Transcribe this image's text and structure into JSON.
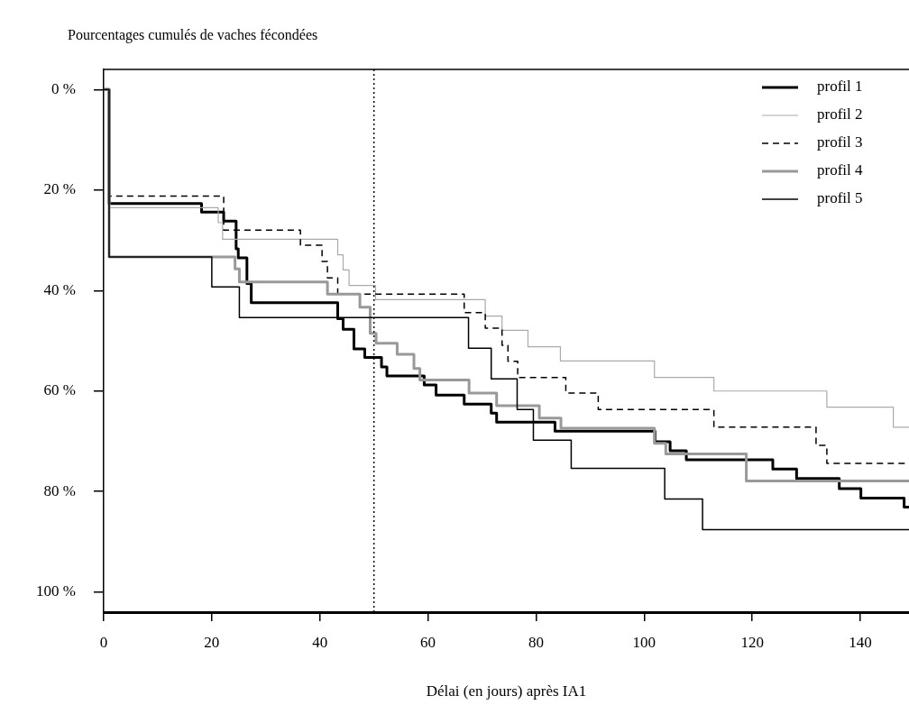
{
  "chart_data": {
    "type": "step",
    "ylabel": "Pourcentages cumulés de vaches fécondées",
    "xlabel": "Délai (en jours) après IA1",
    "xlim": [
      0,
      149
    ],
    "xticks": [
      0,
      20,
      40,
      60,
      80,
      100,
      120,
      140
    ],
    "ylim": [
      104,
      -4
    ],
    "yticks": [
      {
        "value": 0,
        "label": "0 %"
      },
      {
        "value": 20,
        "label": "20 %"
      },
      {
        "value": 40,
        "label": "40 %"
      },
      {
        "value": 60,
        "label": "60 %"
      },
      {
        "value": 80,
        "label": "80 %"
      },
      {
        "value": 100,
        "label": "100 %"
      }
    ],
    "grid": false,
    "legend": "top right",
    "ref_lines": [
      {
        "axis": "x",
        "value": 50,
        "color": "#000000",
        "line_style": "dotted"
      }
    ],
    "series": [
      {
        "name": "profil 1",
        "color": "#000000",
        "x": [
          0,
          1,
          18.1,
          22.2,
          24.5,
          24.9,
          26.5,
          27.3,
          43.3,
          44.3,
          46.3,
          48.3,
          51.4,
          52.4,
          59.3,
          61.5,
          66.7,
          71.7,
          72.7,
          83.5,
          102,
          104.8,
          107.8,
          123.8,
          128.2,
          136.1,
          140.1,
          148.1,
          149
        ],
        "values": [
          0,
          22.7,
          24.4,
          26.2,
          31.7,
          33.5,
          38.6,
          42.4,
          45.6,
          47.7,
          51.6,
          53.3,
          55.2,
          57,
          58.8,
          60.8,
          62.6,
          64.4,
          66.2,
          68,
          70.1,
          71.9,
          73.7,
          75.5,
          77.4,
          79.4,
          81.3,
          83.1,
          83.1
        ]
      },
      {
        "name": "profil 2",
        "color": "#aaaaaa",
        "x": [
          0,
          1,
          21.2,
          22,
          43.3,
          44.3,
          45.4,
          50.3,
          70.6,
          73.7,
          78.5,
          84.5,
          101.9,
          112.9,
          133.8,
          146.1,
          149
        ],
        "values": [
          0,
          23.5,
          26.5,
          29.8,
          32.9,
          35.9,
          39,
          41.8,
          45.1,
          47.9,
          51.2,
          54,
          57.3,
          60,
          63.2,
          67.2,
          67.2
        ]
      },
      {
        "name": "profil 3",
        "color": "#000000",
        "line_style": "dashed",
        "x": [
          0,
          1,
          22.2,
          36.4,
          40.4,
          41.4,
          43.3,
          66.7,
          70.6,
          73.7,
          74.8,
          76.6,
          85.5,
          91.5,
          112.9,
          131.8,
          133.8,
          149
        ],
        "values": [
          0,
          21.2,
          28,
          31,
          34.2,
          37.5,
          40.7,
          44.4,
          47.5,
          50.9,
          54.1,
          57.3,
          60.4,
          63.7,
          67.2,
          70.8,
          74.4,
          74.4
        ]
      },
      {
        "name": "profil 4",
        "color": "#999999",
        "x": [
          0,
          1,
          24.3,
          25.1,
          41.4,
          47.4,
          49.3,
          50.4,
          54.3,
          57.4,
          58.5,
          67.6,
          72.7,
          80.6,
          84.6,
          101.9,
          104,
          118.9,
          149
        ],
        "values": [
          0,
          33.3,
          35.7,
          38.3,
          40.7,
          43.3,
          48.5,
          50.5,
          52.7,
          55.5,
          57.8,
          60.4,
          62.9,
          65.4,
          67.4,
          70.4,
          72.5,
          77.9,
          77.9
        ]
      },
      {
        "name": "profil 5",
        "color": "#000000",
        "x": [
          0,
          1,
          20,
          25.1,
          67.5,
          71.7,
          76.5,
          79.5,
          86.5,
          103.8,
          110.8,
          149
        ],
        "values": [
          0,
          33.3,
          39.3,
          45.4,
          51.5,
          57.6,
          63.7,
          69.8,
          75.4,
          81.5,
          87.6,
          87.6
        ]
      }
    ]
  }
}
